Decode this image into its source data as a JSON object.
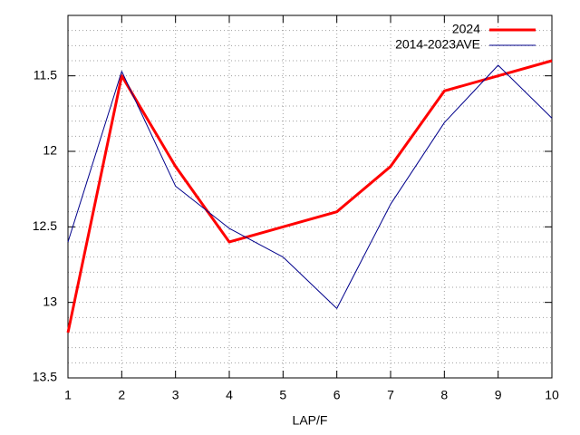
{
  "chart_data": {
    "type": "line",
    "xlabel": "LAP/F",
    "x": [
      1,
      2,
      3,
      4,
      5,
      6,
      7,
      8,
      9,
      10
    ],
    "series": [
      {
        "name": "2024",
        "color": "#ff0000",
        "width": 3,
        "values": [
          13.2,
          11.5,
          12.1,
          12.6,
          12.5,
          12.4,
          12.1,
          11.6,
          11.5,
          11.4
        ]
      },
      {
        "name": "2014-2023AVE",
        "color": "#00008b",
        "width": 1,
        "values": [
          12.6,
          11.47,
          12.23,
          12.51,
          12.7,
          13.04,
          12.35,
          11.81,
          11.43,
          11.78
        ]
      }
    ],
    "xlim": [
      1,
      10
    ],
    "xticks": [
      1,
      2,
      3,
      4,
      5,
      6,
      7,
      8,
      9,
      10
    ],
    "ylim": [
      13.5,
      11.1
    ],
    "y_reversed": true,
    "yticks": [
      11.5,
      12,
      12.5,
      13,
      13.5
    ],
    "yminorticks": [
      11.2,
      11.3,
      11.4,
      11.6,
      11.7,
      11.8,
      11.9,
      12.1,
      12.2,
      12.3,
      12.4,
      12.6,
      12.7,
      12.8,
      12.9,
      13.1,
      13.2,
      13.3,
      13.4
    ],
    "grid": true,
    "legend": "top-right"
  }
}
